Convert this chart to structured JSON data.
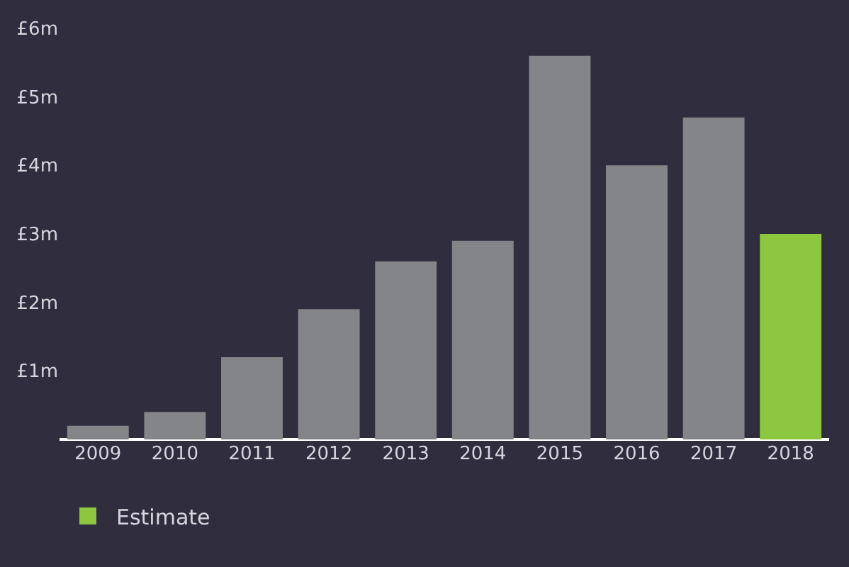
{
  "chart_data": {
    "type": "bar",
    "categories": [
      "2009",
      "2010",
      "2011",
      "2012",
      "2013",
      "2014",
      "2015",
      "2016",
      "2017",
      "2018"
    ],
    "series": [
      {
        "color": "#848588",
        "values": [
          0.2,
          0.4,
          1.2,
          1.9,
          2.6,
          2.9,
          5.6,
          4.0,
          4.7,
          null
        ]
      },
      {
        "name": "Estimate",
        "color": "#8dc63f",
        "values": [
          null,
          null,
          null,
          null,
          null,
          null,
          null,
          null,
          null,
          3.0
        ]
      }
    ],
    "ylim": [
      0,
      6
    ],
    "yticks": [
      {
        "value": 1,
        "label": "£1m"
      },
      {
        "value": 2,
        "label": "£2m"
      },
      {
        "value": 3,
        "label": "£3m"
      },
      {
        "value": 4,
        "label": "£4m"
      },
      {
        "value": 5,
        "label": "£5m"
      },
      {
        "value": 6,
        "label": "£6m"
      }
    ],
    "grid": false,
    "legend": "bottom left"
  }
}
